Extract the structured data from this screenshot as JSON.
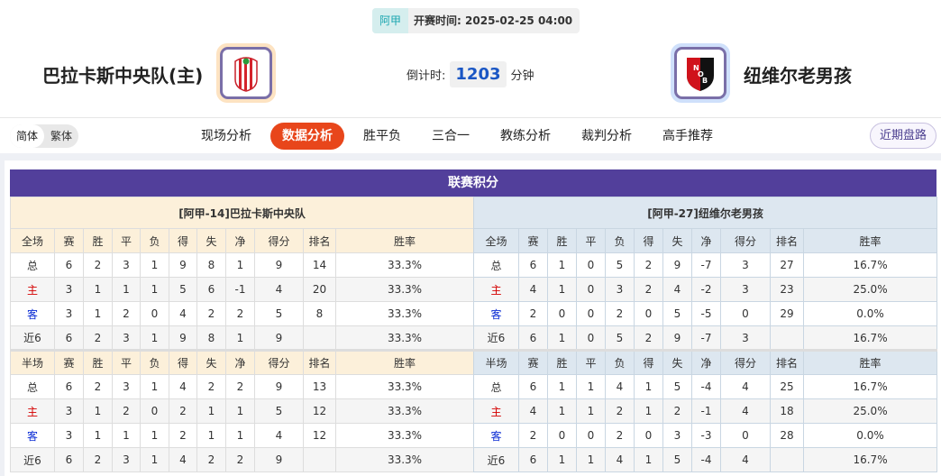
{
  "match": {
    "league": "阿甲",
    "kickoff_label": "开赛时间:",
    "kickoff": "2025-02-25 04:00",
    "home_team": "巴拉卡斯中央队(主)",
    "away_team": "纽维尔老男孩",
    "countdown_label": "倒计时:",
    "countdown_value": "1203",
    "countdown_unit": "分钟"
  },
  "nav": {
    "lang": [
      "简体",
      "繁体"
    ],
    "tabs": [
      "现场分析",
      "数据分析",
      "胜平负",
      "三合一",
      "教练分析",
      "裁判分析",
      "高手推荐"
    ],
    "active_tab": "数据分析",
    "recent_button": "近期盘路"
  },
  "standings": {
    "title": "联赛积分",
    "columns_full": [
      "全场",
      "赛",
      "胜",
      "平",
      "负",
      "得",
      "失",
      "净",
      "得分",
      "排名",
      "胜率"
    ],
    "columns_half": [
      "半场",
      "赛",
      "胜",
      "平",
      "负",
      "得",
      "失",
      "净",
      "得分",
      "排名",
      "胜率"
    ],
    "home": {
      "header": "[阿甲-14]巴拉卡斯中央队",
      "full": [
        [
          "总",
          "6",
          "2",
          "3",
          "1",
          "9",
          "8",
          "1",
          "9",
          "14",
          "33.3%"
        ],
        [
          "主",
          "3",
          "1",
          "1",
          "1",
          "5",
          "6",
          "-1",
          "4",
          "20",
          "33.3%"
        ],
        [
          "客",
          "3",
          "1",
          "2",
          "0",
          "4",
          "2",
          "2",
          "5",
          "8",
          "33.3%"
        ],
        [
          "近6",
          "6",
          "2",
          "3",
          "1",
          "9",
          "8",
          "1",
          "9",
          "",
          "33.3%"
        ]
      ],
      "half": [
        [
          "总",
          "6",
          "2",
          "3",
          "1",
          "4",
          "2",
          "2",
          "9",
          "13",
          "33.3%"
        ],
        [
          "主",
          "3",
          "1",
          "2",
          "0",
          "2",
          "1",
          "1",
          "5",
          "12",
          "33.3%"
        ],
        [
          "客",
          "3",
          "1",
          "1",
          "1",
          "2",
          "1",
          "1",
          "4",
          "12",
          "33.3%"
        ],
        [
          "近6",
          "6",
          "2",
          "3",
          "1",
          "4",
          "2",
          "2",
          "9",
          "",
          "33.3%"
        ]
      ]
    },
    "away": {
      "header": "[阿甲-27]纽维尔老男孩",
      "full": [
        [
          "总",
          "6",
          "1",
          "0",
          "5",
          "2",
          "9",
          "-7",
          "3",
          "27",
          "16.7%"
        ],
        [
          "主",
          "4",
          "1",
          "0",
          "3",
          "2",
          "4",
          "-2",
          "3",
          "23",
          "25.0%"
        ],
        [
          "客",
          "2",
          "0",
          "0",
          "2",
          "0",
          "5",
          "-5",
          "0",
          "29",
          "0.0%"
        ],
        [
          "近6",
          "6",
          "1",
          "0",
          "5",
          "2",
          "9",
          "-7",
          "3",
          "",
          "16.7%"
        ]
      ],
      "half": [
        [
          "总",
          "6",
          "1",
          "1",
          "4",
          "1",
          "5",
          "-4",
          "4",
          "25",
          "16.7%"
        ],
        [
          "主",
          "4",
          "1",
          "1",
          "2",
          "1",
          "2",
          "-1",
          "4",
          "18",
          "25.0%"
        ],
        [
          "客",
          "2",
          "0",
          "0",
          "2",
          "0",
          "3",
          "-3",
          "0",
          "28",
          "0.0%"
        ],
        [
          "近6",
          "6",
          "1",
          "1",
          "4",
          "1",
          "5",
          "-4",
          "4",
          "",
          "16.7%"
        ]
      ]
    }
  },
  "colors": {
    "accent": "#e8461b",
    "title_bar": "#523f9b",
    "home_label": "#d40000",
    "away_label": "#0a2bd4"
  }
}
